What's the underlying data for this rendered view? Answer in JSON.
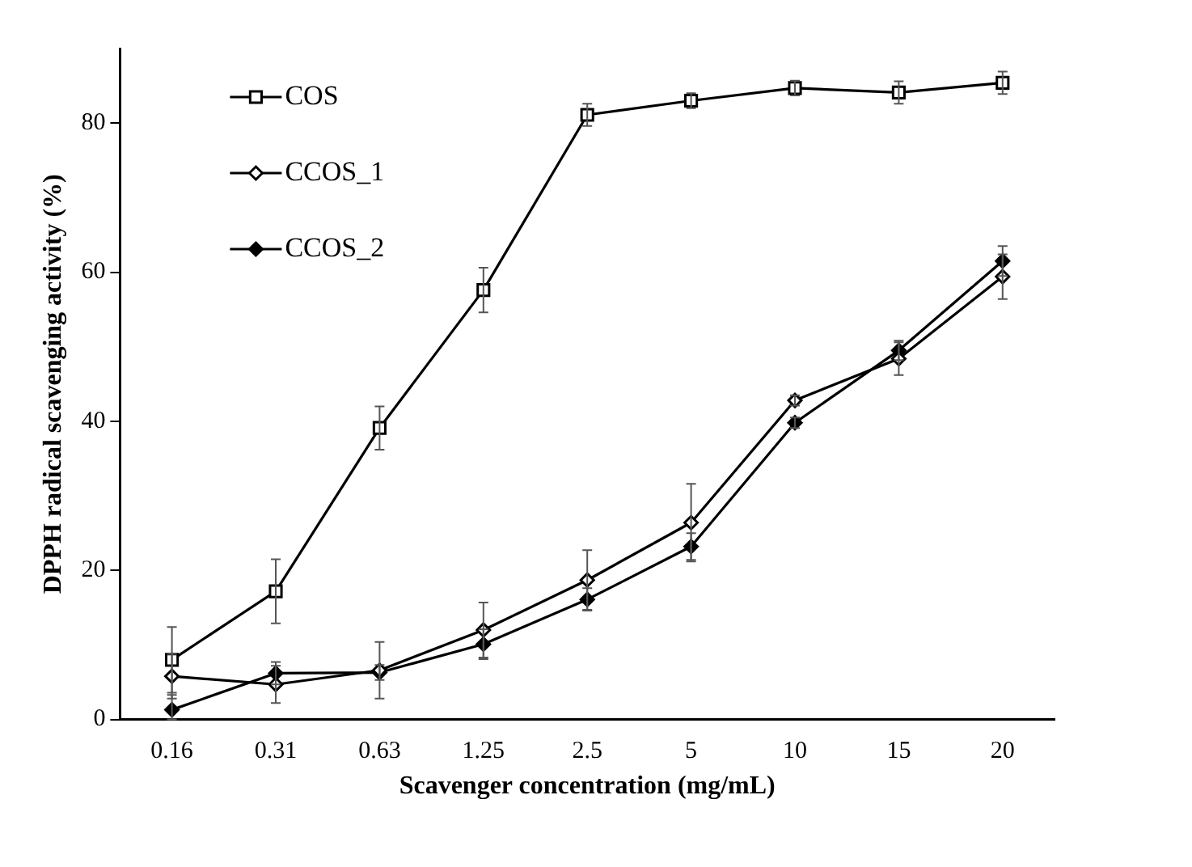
{
  "chart_data": {
    "type": "line",
    "xlabel": "Scavenger concentration (mg/mL)",
    "ylabel": "DPPH radical scavenging activity (%)",
    "categories": [
      "0.16",
      "0.31",
      "0.63",
      "1.25",
      "2.5",
      "5",
      "10",
      "15",
      "20"
    ],
    "ylim": [
      0,
      90
    ],
    "yticks": [
      0,
      20,
      40,
      60,
      80
    ],
    "grid": false,
    "legend": "top left",
    "line_style": "solid",
    "series": [
      {
        "name": "COS",
        "color": "#000000",
        "marker": "square",
        "values": [
          8.0,
          17.2,
          39.1,
          57.6,
          81.1,
          83.0,
          84.7,
          84.1,
          85.4
        ],
        "errors": [
          4.4,
          4.3,
          2.9,
          3,
          1.5,
          1,
          1,
          1.5,
          1.5
        ]
      },
      {
        "name": "CCOS_1",
        "color": "#000000",
        "marker": "diamond",
        "values": [
          5.8,
          4.7,
          6.6,
          12,
          18.7,
          26.4,
          42.8,
          48.4,
          59.4
        ],
        "errors": [
          3,
          2.5,
          3.8,
          3.7,
          4,
          5.2,
          0.7,
          2.2,
          3
        ]
      },
      {
        "name": "CCOS_2",
        "color": "#000000",
        "marker": "diamond",
        "values": [
          1.3,
          6.2,
          6.3,
          10.1,
          16.1,
          23.2,
          39.8,
          49.5,
          61.5
        ],
        "errors": [
          [
            0,
            3.3
          ],
          1.5,
          1,
          2,
          1.5,
          1.8,
          0.7,
          1.3,
          2
        ]
      }
    ]
  }
}
